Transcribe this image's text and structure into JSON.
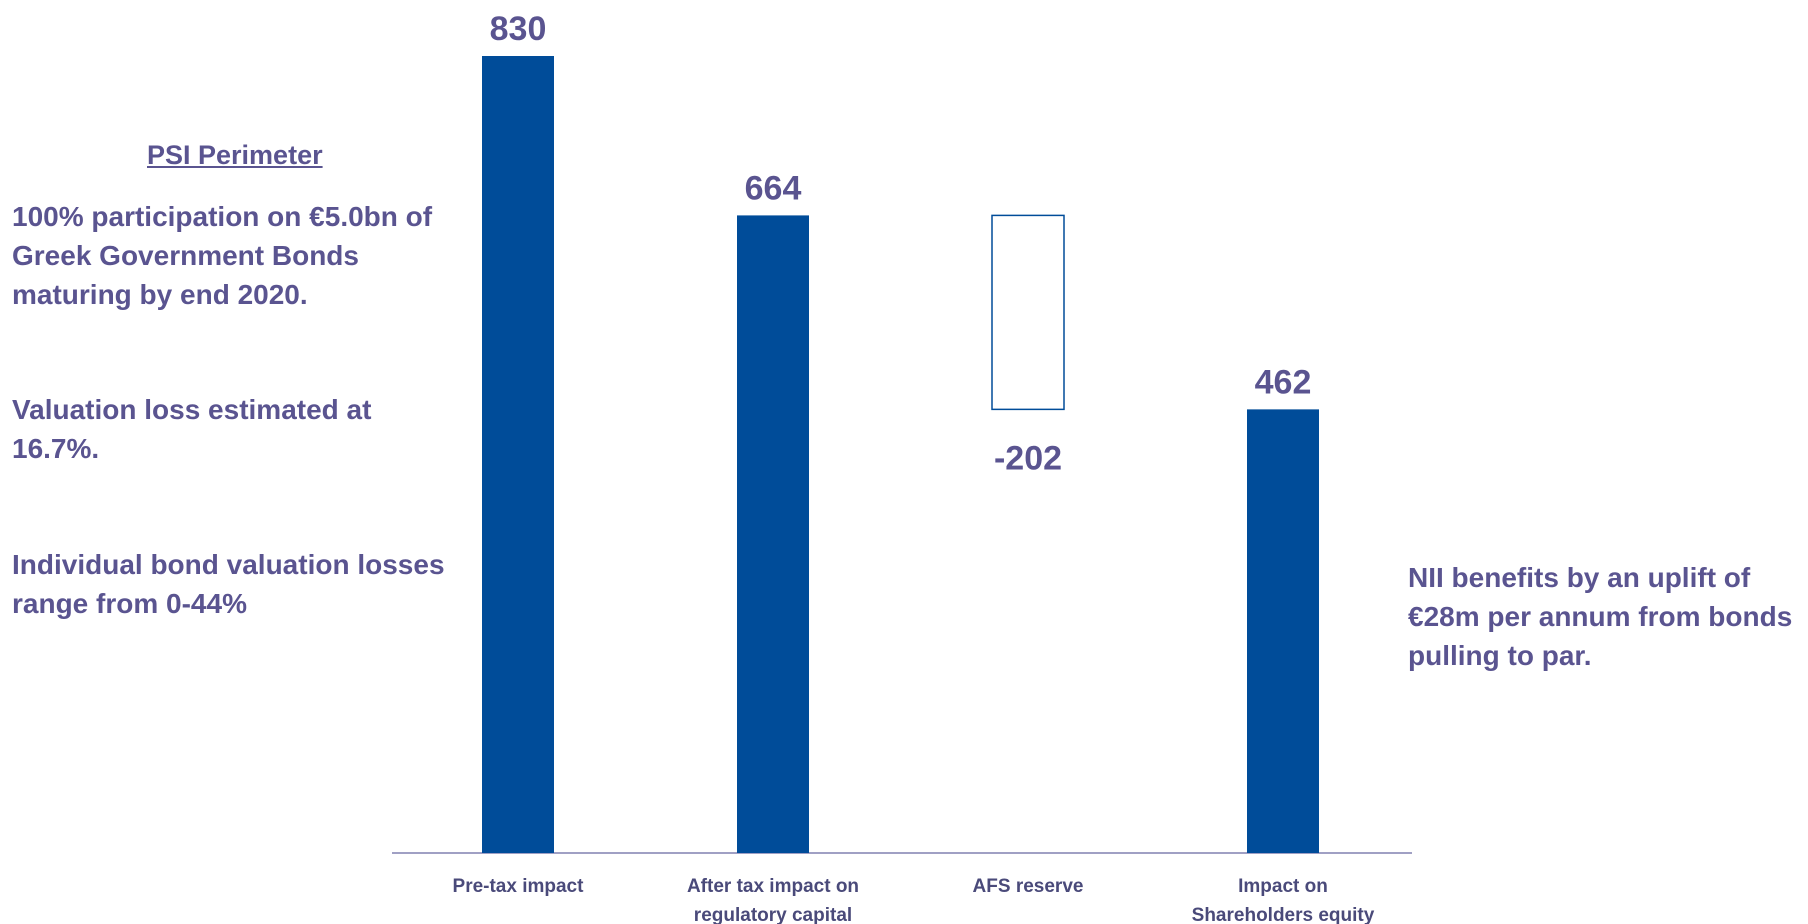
{
  "left_panel": {
    "heading": "PSI Perimeter",
    "para1": "100% participation on €5.0bn of Greek Government Bonds maturing by end 2020.",
    "para2": "Valuation loss estimated at 16.7%.",
    "para3": "Individual bond valuation losses range from 0-44%"
  },
  "right_note": "NII benefits by an uplift of €28m per annum from bonds pulling to par.",
  "colors": {
    "bar": "#004C99",
    "text": "#5a5490",
    "category_text": "#4a4a7a",
    "axis": "#8080b0"
  },
  "chart_data": {
    "type": "bar",
    "subtype": "waterfall",
    "categories": [
      [
        "Pre-tax impact"
      ],
      [
        "After tax impact on",
        "regulatory capital"
      ],
      [
        "AFS reserve"
      ],
      [
        "Impact on",
        "Shareholders equity"
      ]
    ],
    "values": [
      830,
      664,
      -202,
      462
    ],
    "value_labels": [
      "830",
      "664",
      "-202",
      "462"
    ],
    "bar_styles": [
      "filled",
      "filled",
      "outline",
      "filled"
    ],
    "ylim": [
      0,
      830
    ]
  }
}
